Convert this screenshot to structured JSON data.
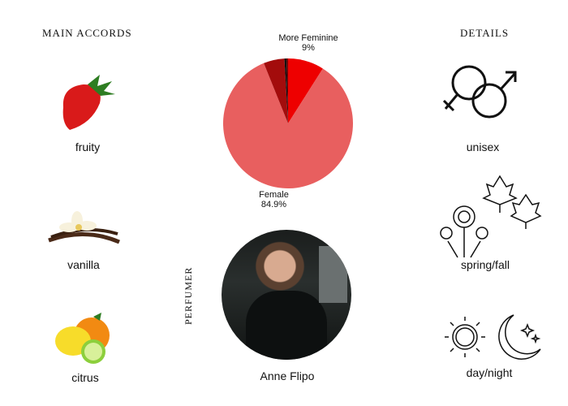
{
  "accords": {
    "title": "MAIN ACCORDS",
    "items": [
      {
        "label": "fruity",
        "icon": "strawberry-icon"
      },
      {
        "label": "vanilla",
        "icon": "vanilla-icon"
      },
      {
        "label": "citrus",
        "icon": "citrus-icon"
      }
    ]
  },
  "details": {
    "title": "DETAILS",
    "items": [
      {
        "label": "unisex",
        "icon": "gender-icon"
      },
      {
        "label": "spring/fall",
        "icon": "season-icon"
      },
      {
        "label": "day/night",
        "icon": "sun-moon-icon"
      }
    ]
  },
  "chart_data": {
    "type": "pie",
    "slices": [
      {
        "name": "More Feminine",
        "value": 9,
        "label": "9%",
        "color": "#ee0000"
      },
      {
        "name": "Female",
        "value": 84.9,
        "label": "84.9%",
        "color": "#e85f5f"
      },
      {
        "value": 5.2,
        "color": "#a30c0c"
      },
      {
        "value": 0.5,
        "color": "#111111"
      },
      {
        "value": 0.4,
        "color": "#6b0000"
      }
    ]
  },
  "perfumer": {
    "title": "PERFUMER",
    "name": "Anne Flipo"
  }
}
